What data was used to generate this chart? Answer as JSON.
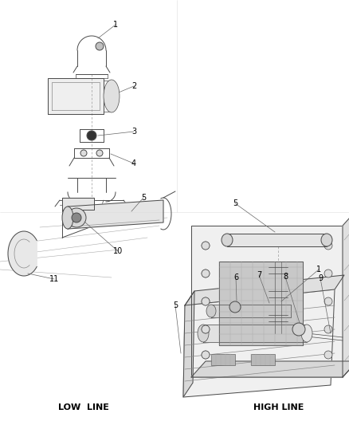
{
  "bg_color": "#ffffff",
  "line_color": "#4a4a4a",
  "label_color": "#000000",
  "labels": {
    "low_line": "LOW  LINE",
    "high_line": "HIGH LINE"
  },
  "figsize": [
    4.39,
    5.33
  ],
  "dpi": 100
}
